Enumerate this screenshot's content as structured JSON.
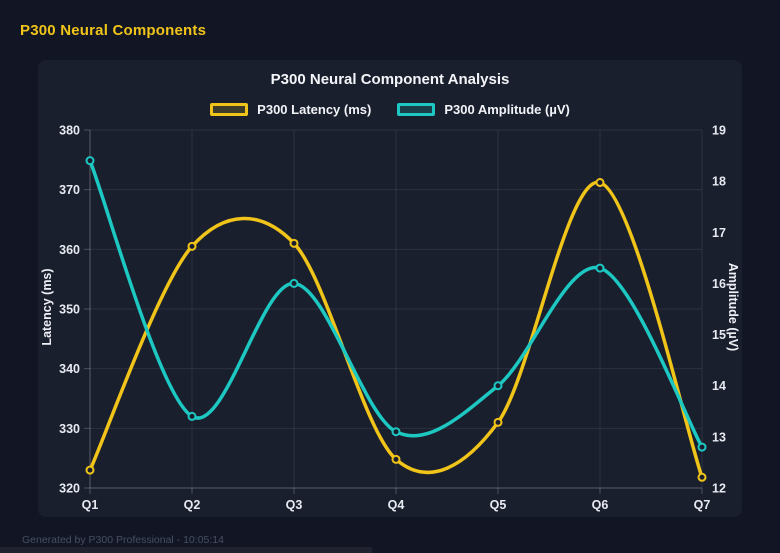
{
  "page": {
    "title": "P300 Neural Components",
    "footer": "Generated by P300 Professional - 10:05:14",
    "bg": "#121624",
    "card_bg": "#1a1f2e"
  },
  "chart_data": {
    "type": "line",
    "title": "P300 Neural Component Analysis",
    "categories": [
      "Q1",
      "Q2",
      "Q3",
      "Q4",
      "Q5",
      "Q6",
      "Q7"
    ],
    "series": [
      {
        "name": "P300 Latency (ms)",
        "axis": "left",
        "color": "#f0c419",
        "values": [
          323.0,
          360.5,
          361.0,
          324.8,
          331.0,
          371.2,
          321.8
        ]
      },
      {
        "name": "P300 Amplitude (µV)",
        "axis": "right",
        "color": "#1dc8c2",
        "values": [
          18.4,
          13.4,
          16.0,
          13.1,
          14.0,
          16.3,
          12.8
        ]
      }
    ],
    "left_axis": {
      "label": "Latency (ms)",
      "min": 320,
      "max": 380,
      "ticks": [
        320,
        330,
        340,
        350,
        360,
        370,
        380
      ]
    },
    "right_axis": {
      "label": "Amplitude (µV)",
      "min": 12,
      "max": 19,
      "ticks": [
        12,
        13,
        14,
        15,
        16,
        17,
        18,
        19
      ]
    },
    "grid": true,
    "smooth": true,
    "legend_position": "top",
    "colors": {
      "grid": "rgba(255,255,255,0.08)",
      "axis_border": "rgba(255,255,255,0.22)",
      "tick_label": "#e8eaf1",
      "marker_fill": "#1a1f2e"
    }
  }
}
